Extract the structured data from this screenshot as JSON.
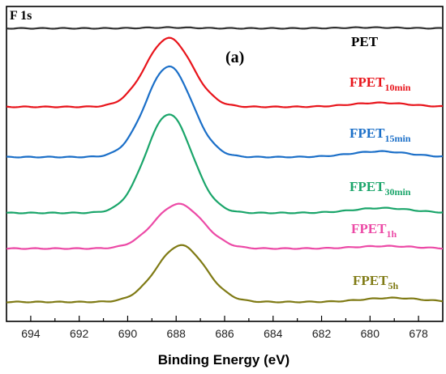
{
  "chart_data": {
    "type": "line",
    "corner_label": "F 1s",
    "panel_label": "(a)",
    "xlabel": "Binding Energy (eV)",
    "xlim": [
      695,
      677
    ],
    "x_reversed": true,
    "xticks": [
      694,
      692,
      690,
      688,
      686,
      684,
      682,
      680,
      678
    ],
    "y_axis_ticks_shown": false,
    "series": [
      {
        "name": "PET",
        "sub": "",
        "color": "#333333",
        "baseline": 35,
        "peak_center": 688.3,
        "peak_height": 1,
        "peak_width": 1.0,
        "tail_center": 680,
        "tail_height": 1
      },
      {
        "name": "FPET",
        "sub": "10min",
        "color": "#e8141b",
        "baseline": 132,
        "peak_center": 688.3,
        "peak_height": 85,
        "peak_width": 0.95,
        "tail_center": 679.6,
        "tail_height": 5
      },
      {
        "name": "FPET",
        "sub": "15min",
        "color": "#1b6fc8",
        "baseline": 194,
        "peak_center": 688.3,
        "peak_height": 112,
        "peak_width": 0.95,
        "tail_center": 679.6,
        "tail_height": 7
      },
      {
        "name": "FPET",
        "sub": "30min",
        "color": "#1aa56a",
        "baseline": 263,
        "peak_center": 688.3,
        "peak_height": 122,
        "peak_width": 0.95,
        "tail_center": 679.5,
        "tail_height": 6
      },
      {
        "name": "FPET",
        "sub": "1h",
        "color": "#ec4aa6",
        "baseline": 307,
        "peak_center": 687.9,
        "peak_height": 55,
        "peak_width": 1.0,
        "tail_center": 679.4,
        "tail_height": 3
      },
      {
        "name": "FPET",
        "sub": "5h",
        "color": "#7f7a14",
        "baseline": 373,
        "peak_center": 687.8,
        "peak_height": 70,
        "peak_width": 1.0,
        "tail_center": 679.1,
        "tail_height": 5
      }
    ]
  }
}
